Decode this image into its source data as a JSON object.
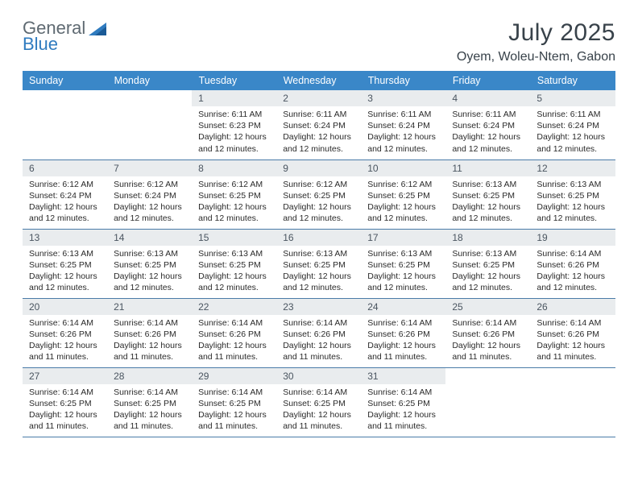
{
  "logo": {
    "word1": "General",
    "word2": "Blue"
  },
  "title": "July 2025",
  "location": "Oyem, Woleu-Ntem, Gabon",
  "colors": {
    "header_bg": "#3a87c8",
    "daynum_bg": "#e9ecee",
    "row_border": "#4a7ba8",
    "title_color": "#38424a",
    "logo_gray": "#5f6a72",
    "logo_blue": "#2f7bbf"
  },
  "weekdays": [
    "Sunday",
    "Monday",
    "Tuesday",
    "Wednesday",
    "Thursday",
    "Friday",
    "Saturday"
  ],
  "weeks": [
    [
      {
        "n": "",
        "sr": "",
        "ss": "",
        "dl": "",
        "empty": true
      },
      {
        "n": "",
        "sr": "",
        "ss": "",
        "dl": "",
        "empty": true
      },
      {
        "n": "1",
        "sr": "Sunrise: 6:11 AM",
        "ss": "Sunset: 6:23 PM",
        "dl": "Daylight: 12 hours and 12 minutes."
      },
      {
        "n": "2",
        "sr": "Sunrise: 6:11 AM",
        "ss": "Sunset: 6:24 PM",
        "dl": "Daylight: 12 hours and 12 minutes."
      },
      {
        "n": "3",
        "sr": "Sunrise: 6:11 AM",
        "ss": "Sunset: 6:24 PM",
        "dl": "Daylight: 12 hours and 12 minutes."
      },
      {
        "n": "4",
        "sr": "Sunrise: 6:11 AM",
        "ss": "Sunset: 6:24 PM",
        "dl": "Daylight: 12 hours and 12 minutes."
      },
      {
        "n": "5",
        "sr": "Sunrise: 6:11 AM",
        "ss": "Sunset: 6:24 PM",
        "dl": "Daylight: 12 hours and 12 minutes."
      }
    ],
    [
      {
        "n": "6",
        "sr": "Sunrise: 6:12 AM",
        "ss": "Sunset: 6:24 PM",
        "dl": "Daylight: 12 hours and 12 minutes."
      },
      {
        "n": "7",
        "sr": "Sunrise: 6:12 AM",
        "ss": "Sunset: 6:24 PM",
        "dl": "Daylight: 12 hours and 12 minutes."
      },
      {
        "n": "8",
        "sr": "Sunrise: 6:12 AM",
        "ss": "Sunset: 6:25 PM",
        "dl": "Daylight: 12 hours and 12 minutes."
      },
      {
        "n": "9",
        "sr": "Sunrise: 6:12 AM",
        "ss": "Sunset: 6:25 PM",
        "dl": "Daylight: 12 hours and 12 minutes."
      },
      {
        "n": "10",
        "sr": "Sunrise: 6:12 AM",
        "ss": "Sunset: 6:25 PM",
        "dl": "Daylight: 12 hours and 12 minutes."
      },
      {
        "n": "11",
        "sr": "Sunrise: 6:13 AM",
        "ss": "Sunset: 6:25 PM",
        "dl": "Daylight: 12 hours and 12 minutes."
      },
      {
        "n": "12",
        "sr": "Sunrise: 6:13 AM",
        "ss": "Sunset: 6:25 PM",
        "dl": "Daylight: 12 hours and 12 minutes."
      }
    ],
    [
      {
        "n": "13",
        "sr": "Sunrise: 6:13 AM",
        "ss": "Sunset: 6:25 PM",
        "dl": "Daylight: 12 hours and 12 minutes."
      },
      {
        "n": "14",
        "sr": "Sunrise: 6:13 AM",
        "ss": "Sunset: 6:25 PM",
        "dl": "Daylight: 12 hours and 12 minutes."
      },
      {
        "n": "15",
        "sr": "Sunrise: 6:13 AM",
        "ss": "Sunset: 6:25 PM",
        "dl": "Daylight: 12 hours and 12 minutes."
      },
      {
        "n": "16",
        "sr": "Sunrise: 6:13 AM",
        "ss": "Sunset: 6:25 PM",
        "dl": "Daylight: 12 hours and 12 minutes."
      },
      {
        "n": "17",
        "sr": "Sunrise: 6:13 AM",
        "ss": "Sunset: 6:25 PM",
        "dl": "Daylight: 12 hours and 12 minutes."
      },
      {
        "n": "18",
        "sr": "Sunrise: 6:13 AM",
        "ss": "Sunset: 6:25 PM",
        "dl": "Daylight: 12 hours and 12 minutes."
      },
      {
        "n": "19",
        "sr": "Sunrise: 6:14 AM",
        "ss": "Sunset: 6:26 PM",
        "dl": "Daylight: 12 hours and 12 minutes."
      }
    ],
    [
      {
        "n": "20",
        "sr": "Sunrise: 6:14 AM",
        "ss": "Sunset: 6:26 PM",
        "dl": "Daylight: 12 hours and 11 minutes."
      },
      {
        "n": "21",
        "sr": "Sunrise: 6:14 AM",
        "ss": "Sunset: 6:26 PM",
        "dl": "Daylight: 12 hours and 11 minutes."
      },
      {
        "n": "22",
        "sr": "Sunrise: 6:14 AM",
        "ss": "Sunset: 6:26 PM",
        "dl": "Daylight: 12 hours and 11 minutes."
      },
      {
        "n": "23",
        "sr": "Sunrise: 6:14 AM",
        "ss": "Sunset: 6:26 PM",
        "dl": "Daylight: 12 hours and 11 minutes."
      },
      {
        "n": "24",
        "sr": "Sunrise: 6:14 AM",
        "ss": "Sunset: 6:26 PM",
        "dl": "Daylight: 12 hours and 11 minutes."
      },
      {
        "n": "25",
        "sr": "Sunrise: 6:14 AM",
        "ss": "Sunset: 6:26 PM",
        "dl": "Daylight: 12 hours and 11 minutes."
      },
      {
        "n": "26",
        "sr": "Sunrise: 6:14 AM",
        "ss": "Sunset: 6:26 PM",
        "dl": "Daylight: 12 hours and 11 minutes."
      }
    ],
    [
      {
        "n": "27",
        "sr": "Sunrise: 6:14 AM",
        "ss": "Sunset: 6:25 PM",
        "dl": "Daylight: 12 hours and 11 minutes."
      },
      {
        "n": "28",
        "sr": "Sunrise: 6:14 AM",
        "ss": "Sunset: 6:25 PM",
        "dl": "Daylight: 12 hours and 11 minutes."
      },
      {
        "n": "29",
        "sr": "Sunrise: 6:14 AM",
        "ss": "Sunset: 6:25 PM",
        "dl": "Daylight: 12 hours and 11 minutes."
      },
      {
        "n": "30",
        "sr": "Sunrise: 6:14 AM",
        "ss": "Sunset: 6:25 PM",
        "dl": "Daylight: 12 hours and 11 minutes."
      },
      {
        "n": "31",
        "sr": "Sunrise: 6:14 AM",
        "ss": "Sunset: 6:25 PM",
        "dl": "Daylight: 12 hours and 11 minutes."
      },
      {
        "n": "",
        "sr": "",
        "ss": "",
        "dl": "",
        "empty": true
      },
      {
        "n": "",
        "sr": "",
        "ss": "",
        "dl": "",
        "empty": true
      }
    ]
  ]
}
